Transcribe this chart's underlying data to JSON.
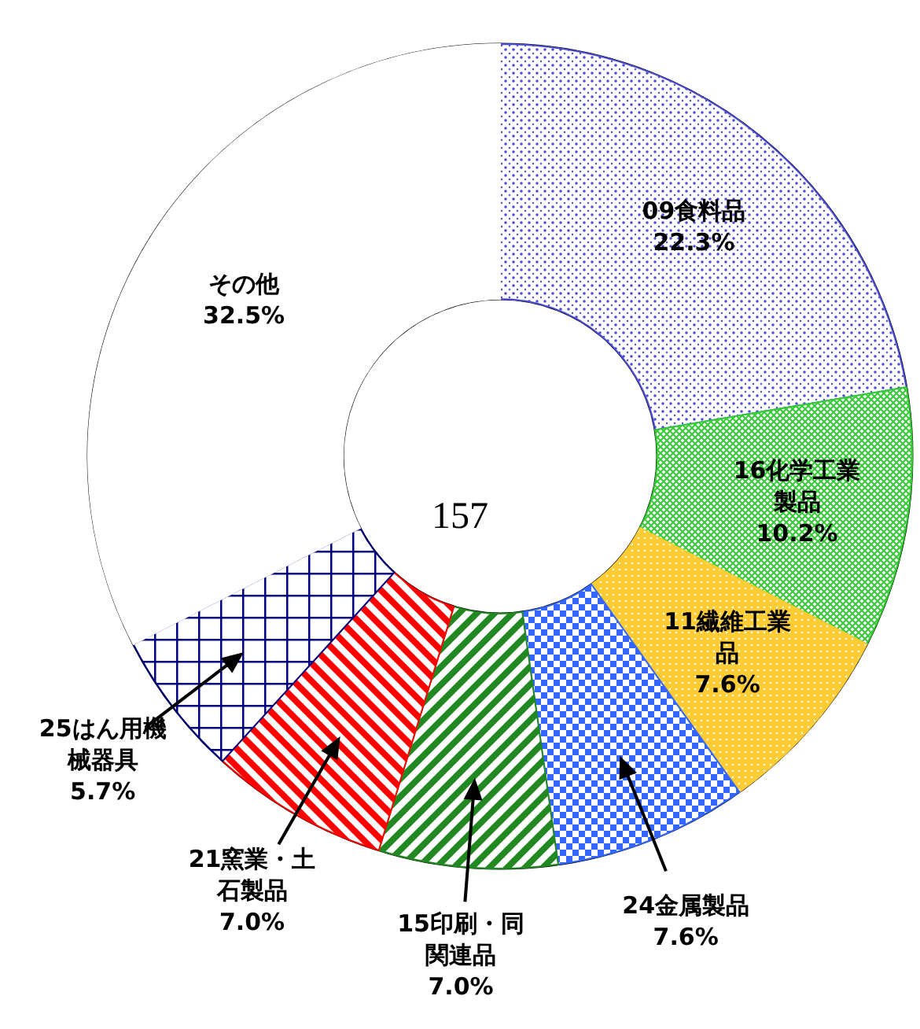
{
  "chart_data": {
    "type": "donut",
    "categories": [
      "09食料品",
      "16化学工業製品",
      "11繊維工業品",
      "24金属製品",
      "15印刷・同関連品",
      "21窯業・土石製品",
      "25はん用機械器具",
      "その他"
    ],
    "values": [
      22.3,
      10.2,
      7.6,
      7.6,
      7.0,
      7.0,
      5.7,
      32.5
    ],
    "colors": [
      "#4d4dd9",
      "#33cc33",
      "#ffcc33",
      "#3366ff",
      "#228822",
      "#ff0000",
      "#000080",
      "#ffffff"
    ],
    "value_labels": [
      "22.3%",
      "10.2%",
      "7.6%",
      "7.6%",
      "7.0%",
      "7.0%",
      "5.7%",
      "32.5%"
    ],
    "annotations": [
      "157"
    ]
  }
}
